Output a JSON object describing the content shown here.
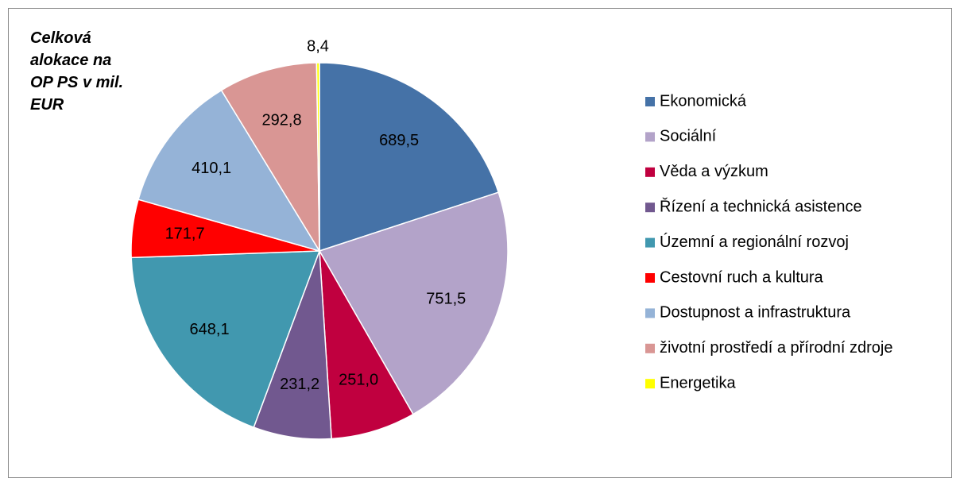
{
  "chart_data": {
    "type": "pie",
    "title": "Celková alokace na OP PS v mil. EUR",
    "categories": [
      "Ekonomická",
      "Sociální",
      "Věda a výzkum",
      "Řízení a technická asistence",
      "Územní a regionální rozvoj",
      "Cestovní ruch a kultura",
      "Dostupnost a infrastruktura",
      "životní prostředí a přírodní zdroje",
      "Energetika"
    ],
    "values": [
      689.5,
      751.5,
      251.0,
      231.2,
      648.1,
      171.7,
      410.1,
      292.8,
      8.4
    ],
    "value_labels": [
      "689,5",
      "751,5",
      "251,0",
      "231,2",
      "648,1",
      "171,7",
      "410,1",
      "292,8",
      "8,4"
    ],
    "colors": [
      "#4572a7",
      "#b3a3c9",
      "#c0003f",
      "#71588f",
      "#4198af",
      "#ff0000",
      "#95b3d7",
      "#d99694",
      "#ffff00"
    ],
    "legend": "right"
  }
}
